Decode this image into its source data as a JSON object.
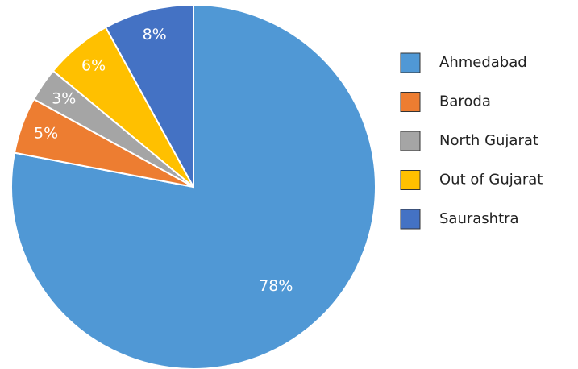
{
  "chart_data": {
    "type": "pie",
    "categories": [
      "Ahmedabad",
      "Baroda",
      "North Gujarat",
      "Out of Gujarat",
      "Saurashtra"
    ],
    "values": [
      78,
      5,
      3,
      6,
      8
    ],
    "value_labels": [
      "78%",
      "5%",
      "3%",
      "6%",
      "8%"
    ],
    "colors": [
      "#5098d5",
      "#ed7d31",
      "#a5a5a5",
      "#ffc000",
      "#4472c4"
    ],
    "legend": "right"
  }
}
